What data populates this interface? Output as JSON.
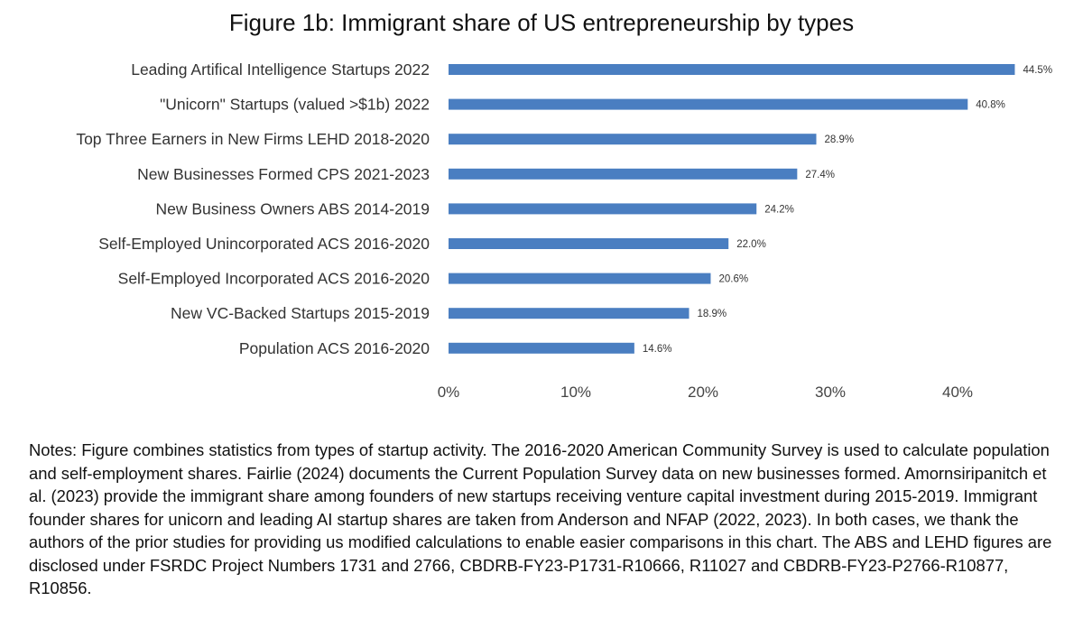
{
  "chart_data": {
    "type": "bar",
    "orientation": "horizontal",
    "title": "Figure 1b: Immigrant share of US entrepreneurship by types",
    "categories": [
      "Leading Artifical Intelligence Startups 2022",
      "\"Unicorn\" Startups (valued >$1b) 2022",
      "Top Three Earners in New Firms LEHD 2018-2020",
      "New Businesses Formed CPS 2021-2023",
      "New Business Owners ABS 2014-2019",
      "Self-Employed Unincorporated ACS 2016-2020",
      "Self-Employed Incorporated ACS 2016-2020",
      "New VC-Backed Startups 2015-2019",
      "Population ACS 2016-2020"
    ],
    "values": [
      44.5,
      40.8,
      28.9,
      27.4,
      24.2,
      22.0,
      20.6,
      18.9,
      14.6
    ],
    "value_labels": [
      "44.5%",
      "40.8%",
      "28.9%",
      "27.4%",
      "24.2%",
      "22.0%",
      "20.6%",
      "18.9%",
      "14.6%"
    ],
    "x_ticks": [
      "0%",
      "10%",
      "20%",
      "30%",
      "40%"
    ],
    "x_tick_values": [
      0,
      10,
      20,
      30,
      40
    ],
    "xlim": [
      0,
      45
    ],
    "grid": false,
    "legend": "none",
    "bar_color": "#4a7ec1"
  },
  "notes": "Notes: Figure combines statistics from types of startup activity. The 2016-2020 American Community Survey is used to calculate population and self-employment shares. Fairlie (2024) documents the Current Population Survey data on new businesses formed. Amornsiripanitch et al. (2023) provide the immigrant share among founders of new startups receiving venture capital investment during 2015-2019. Immigrant founder shares for unicorn and leading AI startup shares are taken from Anderson and NFAP (2022, 2023). In both cases, we thank the authors of the prior studies for providing us modified calculations to enable easier comparisons in this chart. The ABS and LEHD figures are disclosed under FSRDC Project Numbers 1731 and 2766, CBDRB-FY23-P1731-R10666, R11027 and CBDRB-FY23-P2766-R10877, R10856."
}
